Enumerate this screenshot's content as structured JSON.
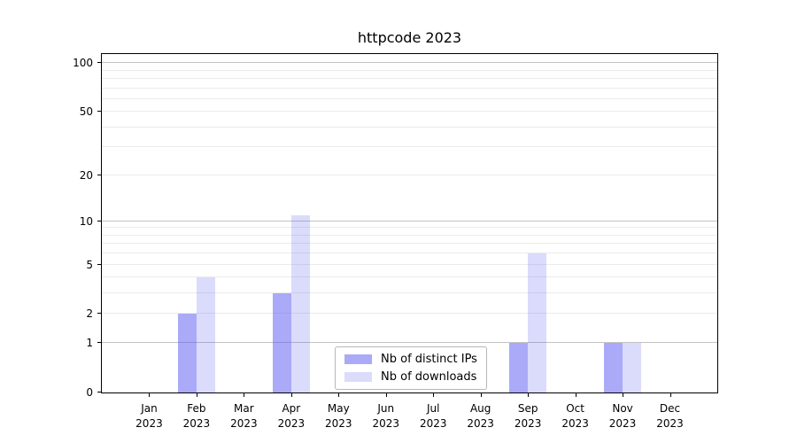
{
  "chart_data": {
    "type": "bar",
    "title": "httpcode 2023",
    "year_label": "2023",
    "months": [
      "Jan",
      "Feb",
      "Mar",
      "Apr",
      "May",
      "Jun",
      "Jul",
      "Aug",
      "Sep",
      "Oct",
      "Nov",
      "Dec"
    ],
    "series": [
      {
        "name": "Nb of distinct IPs",
        "color": "rgba(85,85,242,0.50)",
        "values": [
          0,
          2,
          0,
          3,
          0,
          0,
          0,
          0,
          1,
          0,
          1,
          0
        ]
      },
      {
        "name": "Nb of downloads",
        "color": "rgba(85,85,242,0.21)",
        "values": [
          0,
          4,
          0,
          11,
          0,
          0,
          0,
          0,
          6,
          0,
          1,
          0
        ]
      }
    ],
    "y_ticks": [
      0,
      1,
      2,
      5,
      10,
      20,
      50,
      100
    ],
    "major_gridlines": [
      1,
      10,
      100
    ],
    "scale": "log1p",
    "ylim": [
      0,
      113.5
    ],
    "grid": {
      "major_color": "#c3c3c3",
      "minor_color": "#ebebeb",
      "on": true
    },
    "axis_color": "#000000",
    "legend_position": "lower center"
  }
}
